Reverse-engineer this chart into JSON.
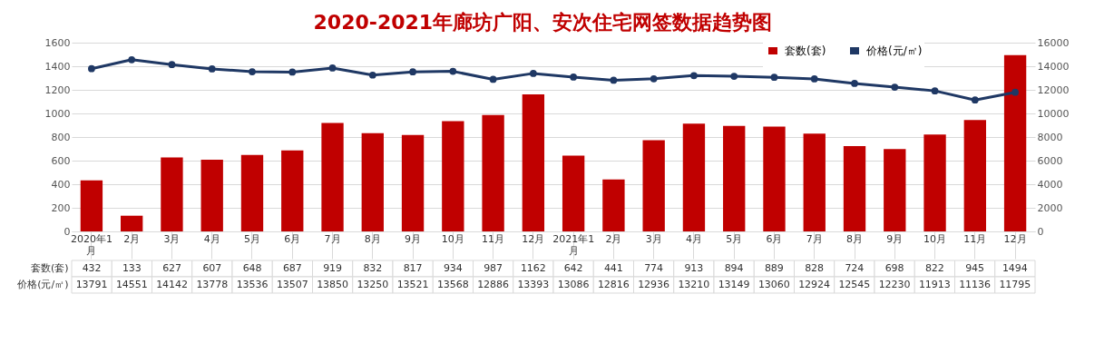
{
  "chart_data": {
    "type": "bar",
    "title": "2020-2021年廊坊广阳、安次住宅网签数据趋势图",
    "categories": [
      "2020年1月",
      "2月",
      "3月",
      "4月",
      "5月",
      "6月",
      "7月",
      "8月",
      "9月",
      "10月",
      "11月",
      "12月",
      "2021年1月",
      "2月",
      "3月",
      "4月",
      "5月",
      "6月",
      "7月",
      "8月",
      "9月",
      "10月",
      "11月",
      "12月"
    ],
    "series": [
      {
        "name": "套数(套)",
        "color": "#c00000",
        "values": [
          432,
          133,
          627,
          607,
          648,
          687,
          919,
          832,
          817,
          934,
          987,
          1162,
          642,
          441,
          774,
          913,
          894,
          889,
          828,
          724,
          698,
          822,
          945,
          1494
        ]
      },
      {
        "name": "价格(元/㎡)",
        "type": "line",
        "axis": "y2",
        "color": "#1f3864",
        "values": [
          13791,
          14551,
          14142,
          13778,
          13536,
          13507,
          13850,
          13250,
          13521,
          13568,
          12886,
          13393,
          13086,
          12816,
          12936,
          13210,
          13149,
          13060,
          12924,
          12545,
          12230,
          11913,
          11136,
          11795
        ]
      }
    ],
    "ylim": [
      0,
      1600
    ],
    "yticks": [
      0,
      200,
      400,
      600,
      800,
      1000,
      1200,
      1400,
      1600
    ],
    "y2lim": [
      0,
      16000
    ],
    "y2ticks": [
      0,
      2000,
      4000,
      6000,
      8000,
      10000,
      12000,
      14000,
      16000
    ],
    "grid": "y",
    "legend": "top right",
    "marker": "circle",
    "line_style": "solid",
    "data_labels": true
  }
}
